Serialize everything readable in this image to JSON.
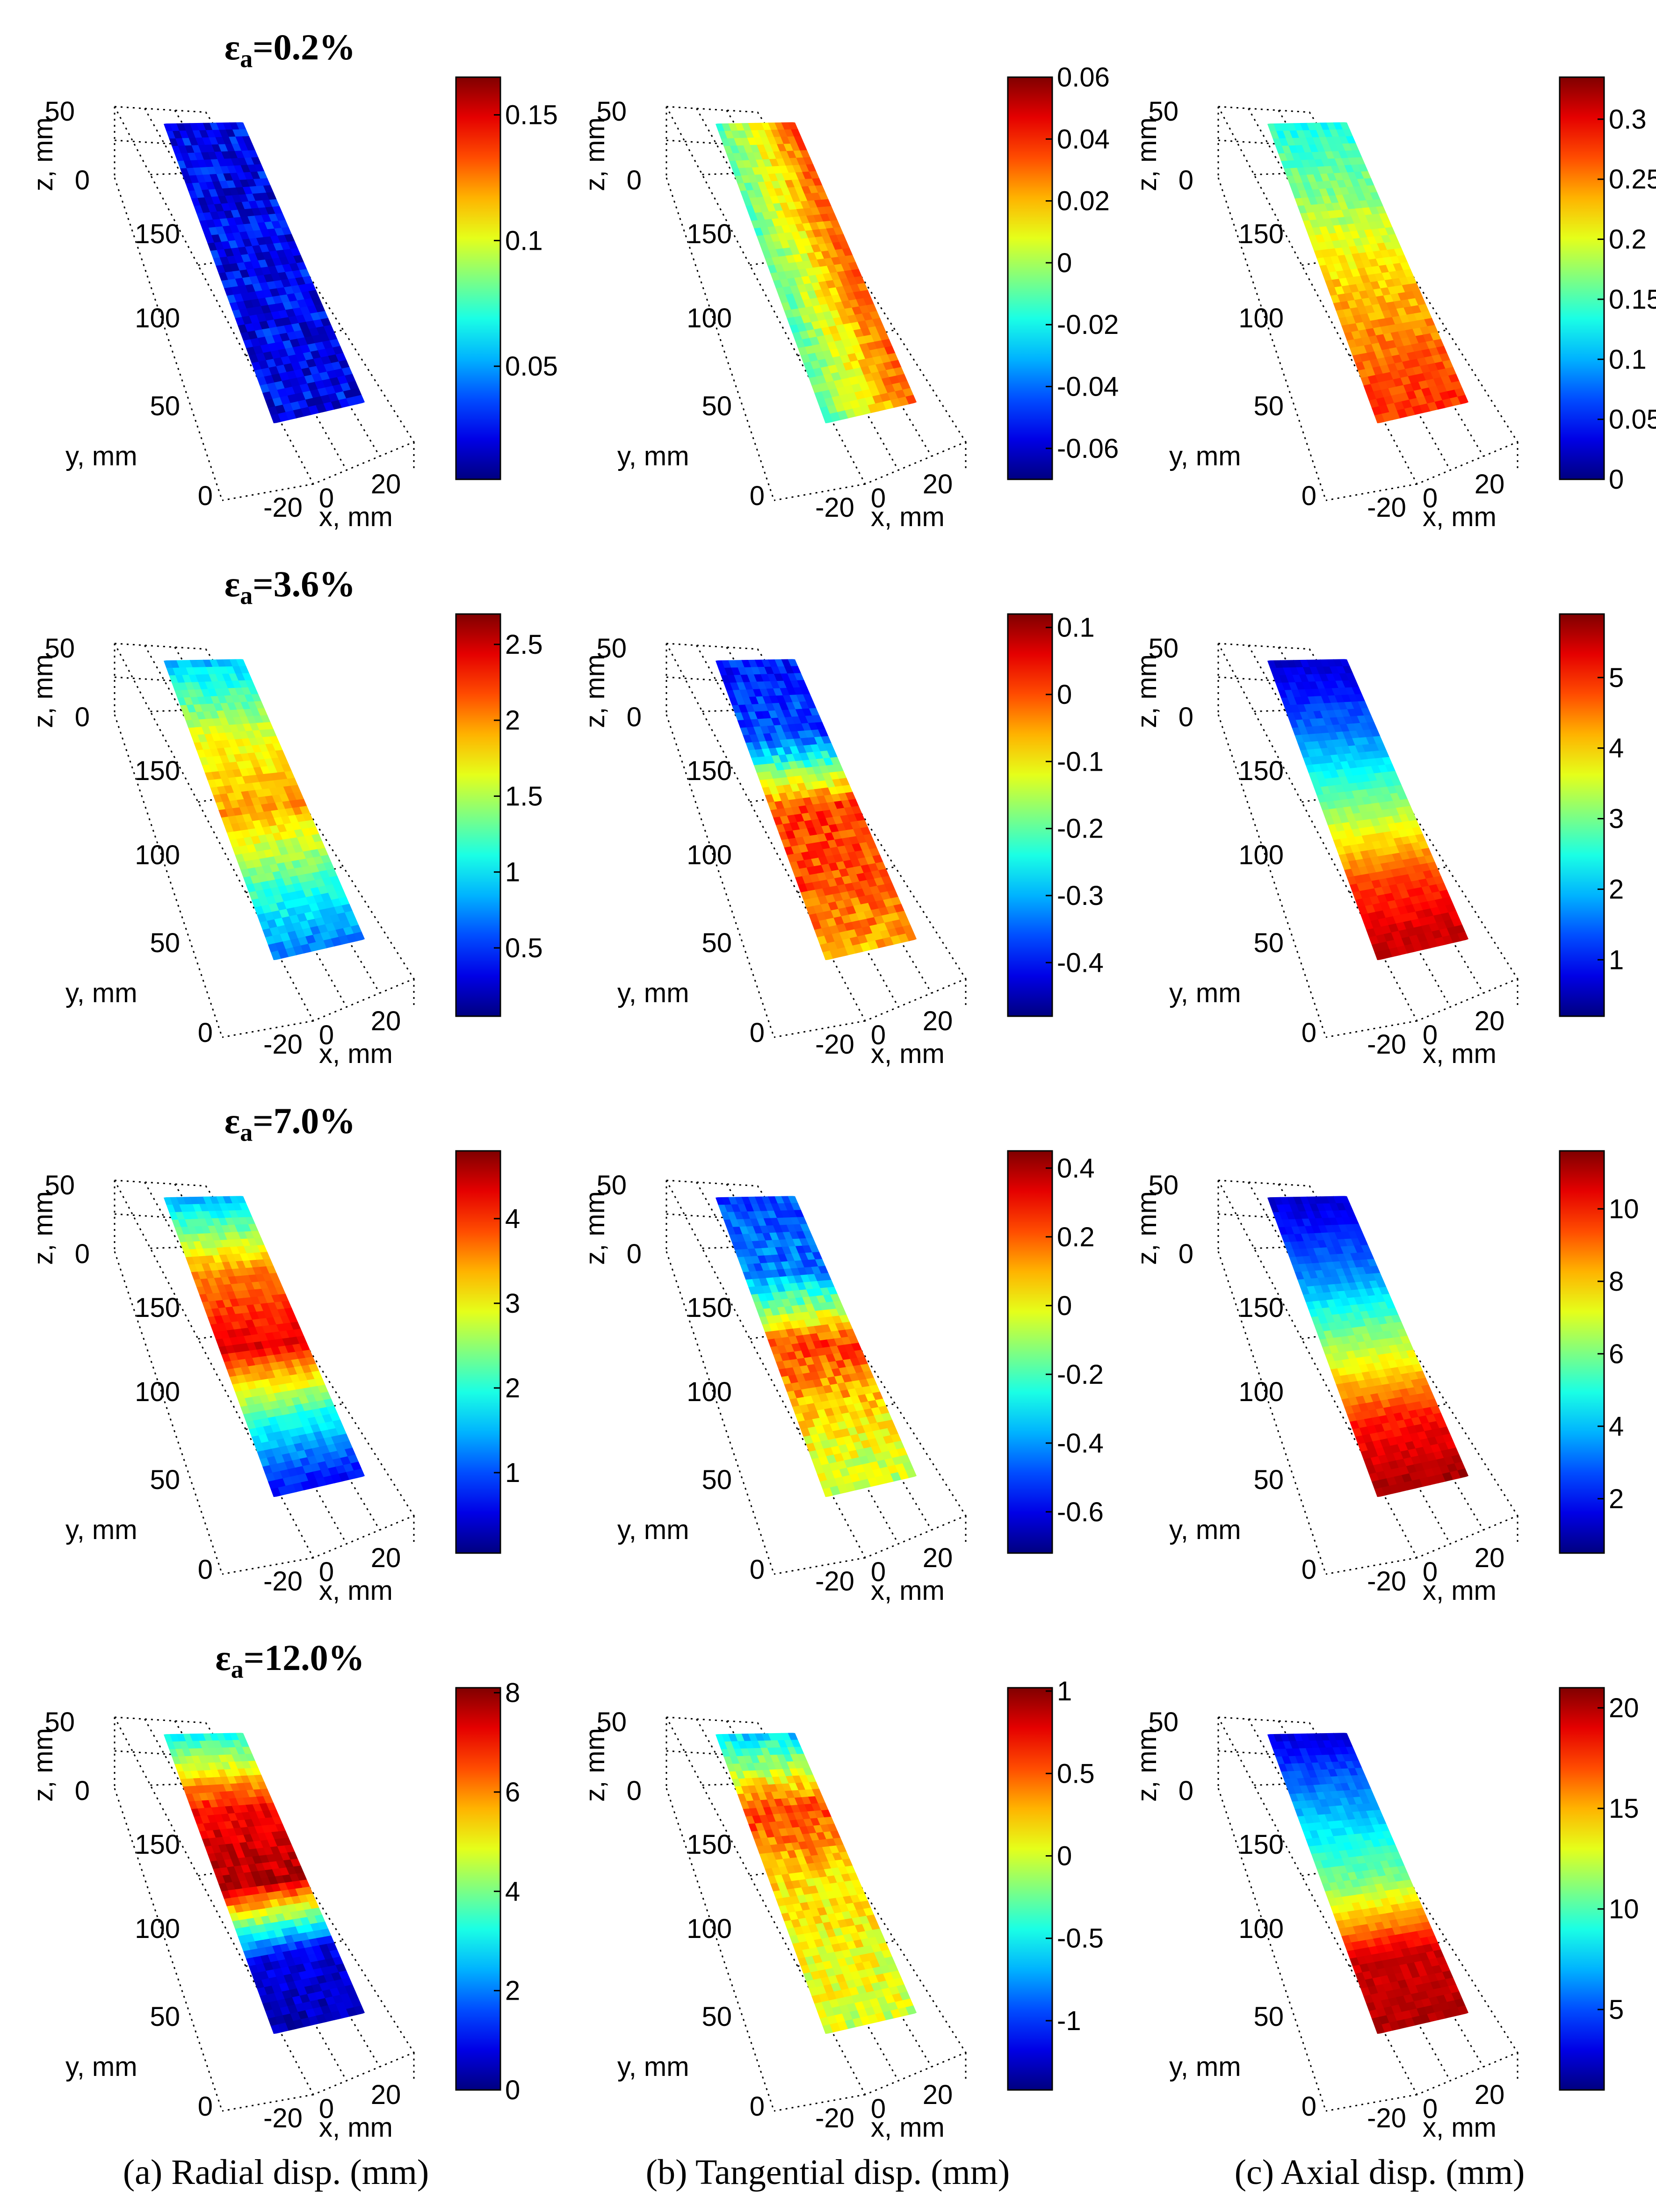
{
  "chart_data": [
    {
      "type": "surface3d",
      "row": 0,
      "col": 0,
      "title": "εa=0.2%",
      "xlabel": "x, mm",
      "ylabel": "y, mm",
      "zlabel": "z, mm",
      "x_ticks": [
        "-20",
        "0",
        "20"
      ],
      "y_ticks": [
        "0",
        "50",
        "100",
        "150"
      ],
      "z_ticks": [
        "0",
        "50"
      ],
      "colorbar": {
        "range": [
          0.005,
          0.165
        ],
        "ticks": [
          "0.05",
          "0.1",
          "0.15"
        ],
        "tick_values": [
          0.05,
          0.1,
          0.15
        ]
      },
      "field": {
        "stops": [
          0.12,
          0.12,
          0.12,
          0.12,
          0.12
        ],
        "noise": 0.09
      }
    },
    {
      "type": "surface3d",
      "row": 0,
      "col": 1,
      "title": "",
      "xlabel": "x, mm",
      "ylabel": "y, mm",
      "zlabel": "z, mm",
      "x_ticks": [
        "-20",
        "0",
        "20"
      ],
      "y_ticks": [
        "0",
        "50",
        "100",
        "150"
      ],
      "z_ticks": [
        "0",
        "50"
      ],
      "colorbar": {
        "range": [
          -0.07,
          0.06
        ],
        "ticks": [
          "0.06",
          "0.04",
          "0.02",
          "0",
          "-0.02",
          "-0.04",
          "-0.06"
        ],
        "tick_values": [
          0.06,
          0.04,
          0.02,
          0,
          -0.02,
          -0.04,
          -0.06
        ]
      },
      "field": {
        "xgradient": true,
        "stops": [
          0.62,
          0.62,
          0.62,
          0.62,
          0.62
        ],
        "noise": 0.06
      }
    },
    {
      "type": "surface3d",
      "row": 0,
      "col": 2,
      "title": "",
      "xlabel": "x, mm",
      "ylabel": "y, mm",
      "zlabel": "z, mm",
      "x_ticks": [
        "-20",
        "0",
        "20"
      ],
      "y_ticks": [
        "0",
        "50",
        "100",
        "150"
      ],
      "z_ticks": [
        "0",
        "50"
      ],
      "colorbar": {
        "range": [
          0,
          0.335
        ],
        "ticks": [
          "0.3",
          "0.25",
          "0.2",
          "0.15",
          "0.1",
          "0.05",
          "0"
        ],
        "tick_values": [
          0.3,
          0.25,
          0.2,
          0.15,
          0.1,
          0.05,
          0
        ]
      },
      "field": {
        "stops": [
          0.4,
          0.52,
          0.66,
          0.76,
          0.84
        ],
        "noise": 0.05
      }
    },
    {
      "type": "surface3d",
      "row": 1,
      "col": 0,
      "title": "εa=3.6%",
      "xlabel": "x, mm",
      "ylabel": "y, mm",
      "zlabel": "z, mm",
      "x_ticks": [
        "-20",
        "0",
        "20"
      ],
      "y_ticks": [
        "0",
        "50",
        "100",
        "150"
      ],
      "z_ticks": [
        "0",
        "50"
      ],
      "colorbar": {
        "range": [
          0.05,
          2.7
        ],
        "ticks": [
          "2.5",
          "2",
          "1.5",
          "1",
          "0.5"
        ],
        "tick_values": [
          2.5,
          2,
          1.5,
          1,
          0.5
        ]
      },
      "field": {
        "stops": [
          0.32,
          0.6,
          0.72,
          0.45,
          0.22
        ],
        "noise": 0.05
      }
    },
    {
      "type": "surface3d",
      "row": 1,
      "col": 1,
      "title": "",
      "xlabel": "x, mm",
      "ylabel": "y, mm",
      "zlabel": "z, mm",
      "x_ticks": [
        "-20",
        "0",
        "20"
      ],
      "y_ticks": [
        "0",
        "50",
        "100",
        "150"
      ],
      "z_ticks": [
        "0",
        "50"
      ],
      "colorbar": {
        "range": [
          -0.48,
          0.12
        ],
        "ticks": [
          "0.1",
          "0",
          "-0.1",
          "-0.2",
          "-0.3",
          "-0.4"
        ],
        "tick_values": [
          0.1,
          0,
          -0.1,
          -0.2,
          -0.3,
          -0.4
        ]
      },
      "field": {
        "stops": [
          0.15,
          0.2,
          0.82,
          0.8,
          0.7
        ],
        "noise": 0.07
      }
    },
    {
      "type": "surface3d",
      "row": 1,
      "col": 2,
      "title": "",
      "xlabel": "x, mm",
      "ylabel": "y, mm",
      "zlabel": "z, mm",
      "x_ticks": [
        "-20",
        "0",
        "20"
      ],
      "y_ticks": [
        "0",
        "50",
        "100",
        "150"
      ],
      "z_ticks": [
        "0",
        "50"
      ],
      "colorbar": {
        "range": [
          0.2,
          5.9
        ],
        "ticks": [
          "5",
          "4",
          "3",
          "2",
          "1"
        ],
        "tick_values": [
          5,
          4,
          3,
          2,
          1
        ]
      },
      "field": {
        "stops": [
          0.08,
          0.25,
          0.52,
          0.82,
          0.95
        ],
        "noise": 0.03
      }
    },
    {
      "type": "surface3d",
      "row": 2,
      "col": 0,
      "title": "εa=7.0%",
      "xlabel": "x, mm",
      "ylabel": "y, mm",
      "zlabel": "z, mm",
      "x_ticks": [
        "-20",
        "0",
        "20"
      ],
      "y_ticks": [
        "0",
        "50",
        "100",
        "150"
      ],
      "z_ticks": [
        "0",
        "50"
      ],
      "colorbar": {
        "range": [
          0.05,
          4.8
        ],
        "ticks": [
          "4",
          "3",
          "2",
          "1"
        ],
        "tick_values": [
          4,
          3,
          2,
          1
        ]
      },
      "field": {
        "stops": [
          0.3,
          0.75,
          0.9,
          0.4,
          0.1
        ],
        "noise": 0.04
      }
    },
    {
      "type": "surface3d",
      "row": 2,
      "col": 1,
      "title": "",
      "xlabel": "x, mm",
      "ylabel": "y, mm",
      "zlabel": "z, mm",
      "x_ticks": [
        "-20",
        "0",
        "20"
      ],
      "y_ticks": [
        "0",
        "50",
        "100",
        "150"
      ],
      "z_ticks": [
        "0",
        "50"
      ],
      "colorbar": {
        "range": [
          -0.72,
          0.45
        ],
        "ticks": [
          "0.4",
          "0.2",
          "0",
          "-0.2",
          "-0.4",
          "-0.6"
        ],
        "tick_values": [
          0.4,
          0.2,
          0,
          -0.2,
          -0.4,
          -0.6
        ]
      },
      "field": {
        "stops": [
          0.2,
          0.25,
          0.82,
          0.65,
          0.55
        ],
        "noise": 0.07
      }
    },
    {
      "type": "surface3d",
      "row": 2,
      "col": 2,
      "title": "",
      "xlabel": "x, mm",
      "ylabel": "y, mm",
      "zlabel": "z, mm",
      "x_ticks": [
        "-20",
        "0",
        "20"
      ],
      "y_ticks": [
        "0",
        "50",
        "100",
        "150"
      ],
      "z_ticks": [
        "0",
        "50"
      ],
      "colorbar": {
        "range": [
          0.5,
          11.6
        ],
        "ticks": [
          "10",
          "8",
          "6",
          "4",
          "2"
        ],
        "tick_values": [
          10,
          8,
          6,
          4,
          2
        ]
      },
      "field": {
        "stops": [
          0.08,
          0.25,
          0.55,
          0.85,
          0.97
        ],
        "noise": 0.03
      }
    },
    {
      "type": "surface3d",
      "row": 3,
      "col": 0,
      "title": "εa=12.0%",
      "xlabel": "x, mm",
      "ylabel": "y, mm",
      "zlabel": "z, mm",
      "x_ticks": [
        "-20",
        "0",
        "20"
      ],
      "y_ticks": [
        "0",
        "50",
        "100",
        "150"
      ],
      "z_ticks": [
        "0",
        "50"
      ],
      "colorbar": {
        "range": [
          0,
          8.1
        ],
        "ticks": [
          "8",
          "6",
          "4",
          "2",
          "0"
        ],
        "tick_values": [
          8,
          6,
          4,
          2,
          0
        ]
      },
      "field": {
        "stops": [
          0.4,
          0.88,
          0.95,
          0.1,
          0.05
        ],
        "noise": 0.05
      }
    },
    {
      "type": "surface3d",
      "row": 3,
      "col": 1,
      "title": "",
      "xlabel": "x, mm",
      "ylabel": "y, mm",
      "zlabel": "z, mm",
      "x_ticks": [
        "-20",
        "0",
        "20"
      ],
      "y_ticks": [
        "0",
        "50",
        "100",
        "150"
      ],
      "z_ticks": [
        "0",
        "50"
      ],
      "colorbar": {
        "range": [
          -1.42,
          1.02
        ],
        "ticks": [
          "1",
          "0.5",
          "0",
          "-0.5",
          "-1"
        ],
        "tick_values": [
          1,
          0.5,
          0,
          -0.5,
          -1
        ]
      },
      "field": {
        "stops": [
          0.35,
          0.82,
          0.65,
          0.62,
          0.58
        ],
        "noise": 0.07
      }
    },
    {
      "type": "surface3d",
      "row": 3,
      "col": 2,
      "title": "",
      "xlabel": "x, mm",
      "ylabel": "y, mm",
      "zlabel": "z, mm",
      "x_ticks": [
        "-20",
        "0",
        "20"
      ],
      "y_ticks": [
        "0",
        "50",
        "100",
        "150"
      ],
      "z_ticks": [
        "0",
        "50"
      ],
      "colorbar": {
        "range": [
          1,
          21
        ],
        "ticks": [
          "20",
          "15",
          "10",
          "5"
        ],
        "tick_values": [
          20,
          15,
          10,
          5
        ]
      },
      "field": {
        "stops": [
          0.1,
          0.3,
          0.5,
          0.92,
          0.95
        ],
        "noise": 0.03
      }
    }
  ],
  "row_titles": [
    "ε",
    "ε",
    "ε",
    "ε"
  ],
  "row_title_subscripts": [
    "a",
    "a",
    "a",
    "a"
  ],
  "row_title_values": [
    "=0.2%",
    "=3.6%",
    "=7.0%",
    "=12.0%"
  ],
  "captions": [
    "(a) Radial disp. (mm)",
    "(b) Tangential disp. (mm)",
    "(c) Axial disp. (mm)"
  ]
}
